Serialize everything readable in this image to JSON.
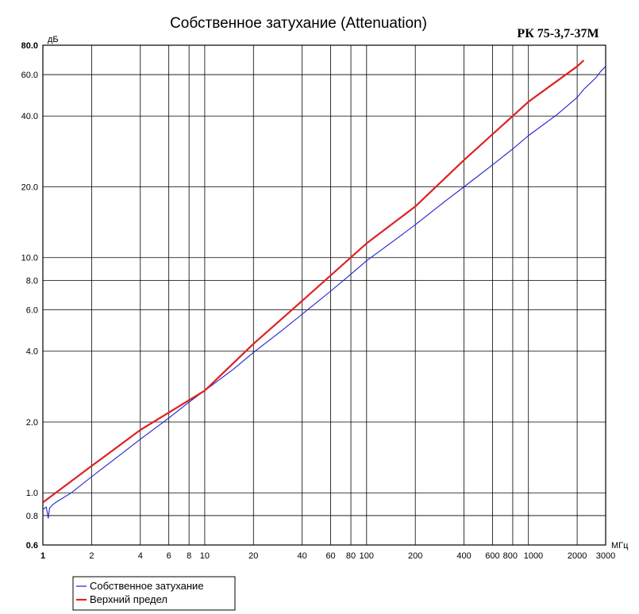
{
  "chart_data": {
    "type": "line",
    "title": "Собственное затухание (Attenuation)",
    "model_label": "РК 75-3,7-37М",
    "x_scale": "log",
    "y_scale": "log",
    "xlim": [
      1,
      3000
    ],
    "ylim": [
      0.6,
      80
    ],
    "x_unit": "МГц",
    "y_unit": "дБ",
    "x_ticks": [
      1,
      2,
      4,
      6,
      8,
      10,
      20,
      40,
      60,
      80,
      100,
      200,
      400,
      600,
      800,
      1000,
      2000,
      3000
    ],
    "x_tick_labels": [
      "1",
      "2",
      "4",
      "6",
      "8",
      "10",
      "20",
      "40",
      "60",
      "80",
      "100",
      "200",
      "400",
      "600",
      "800",
      "1000",
      "2000",
      "3000"
    ],
    "y_ticks": [
      0.6,
      0.8,
      1.0,
      2.0,
      4.0,
      6.0,
      8.0,
      10.0,
      20.0,
      40.0,
      60.0,
      80.0
    ],
    "y_tick_labels": [
      "0.6",
      "0.8",
      "1.0",
      "2.0",
      "4.0",
      "6.0",
      "8.0",
      "10.0",
      "20.0",
      "40.0",
      "60.0",
      "80.0"
    ],
    "grid": true,
    "legend_position": "bottom-left",
    "series": [
      {
        "name": "Собственное затухание",
        "color": "#2222cc",
        "x": [
          1,
          1.05,
          1.08,
          1.1,
          1.15,
          1.2,
          1.5,
          2,
          3,
          4,
          6,
          8,
          10,
          15,
          20,
          30,
          40,
          60,
          80,
          100,
          150,
          200,
          300,
          400,
          600,
          800,
          1000,
          1500,
          2000,
          2200,
          2400,
          2600,
          2800,
          3000
        ],
        "y": [
          0.85,
          0.87,
          0.78,
          0.86,
          0.89,
          0.91,
          1.0,
          1.17,
          1.45,
          1.69,
          2.08,
          2.43,
          2.72,
          3.35,
          3.95,
          4.9,
          5.75,
          7.2,
          8.5,
          9.7,
          11.9,
          13.8,
          17.2,
          20.0,
          24.8,
          29.0,
          33.0,
          40.5,
          48.0,
          52.0,
          55.0,
          58.0,
          62.0,
          65.0
        ]
      },
      {
        "name": "Верхний предел",
        "color": "#dd2222",
        "x": [
          1,
          2,
          4,
          10,
          20,
          40,
          100,
          200,
          400,
          1000,
          2000,
          2200
        ],
        "y": [
          0.91,
          1.3,
          1.85,
          2.72,
          4.3,
          6.55,
          11.5,
          16.5,
          26.0,
          46.0,
          65.0,
          69.0
        ]
      }
    ]
  }
}
